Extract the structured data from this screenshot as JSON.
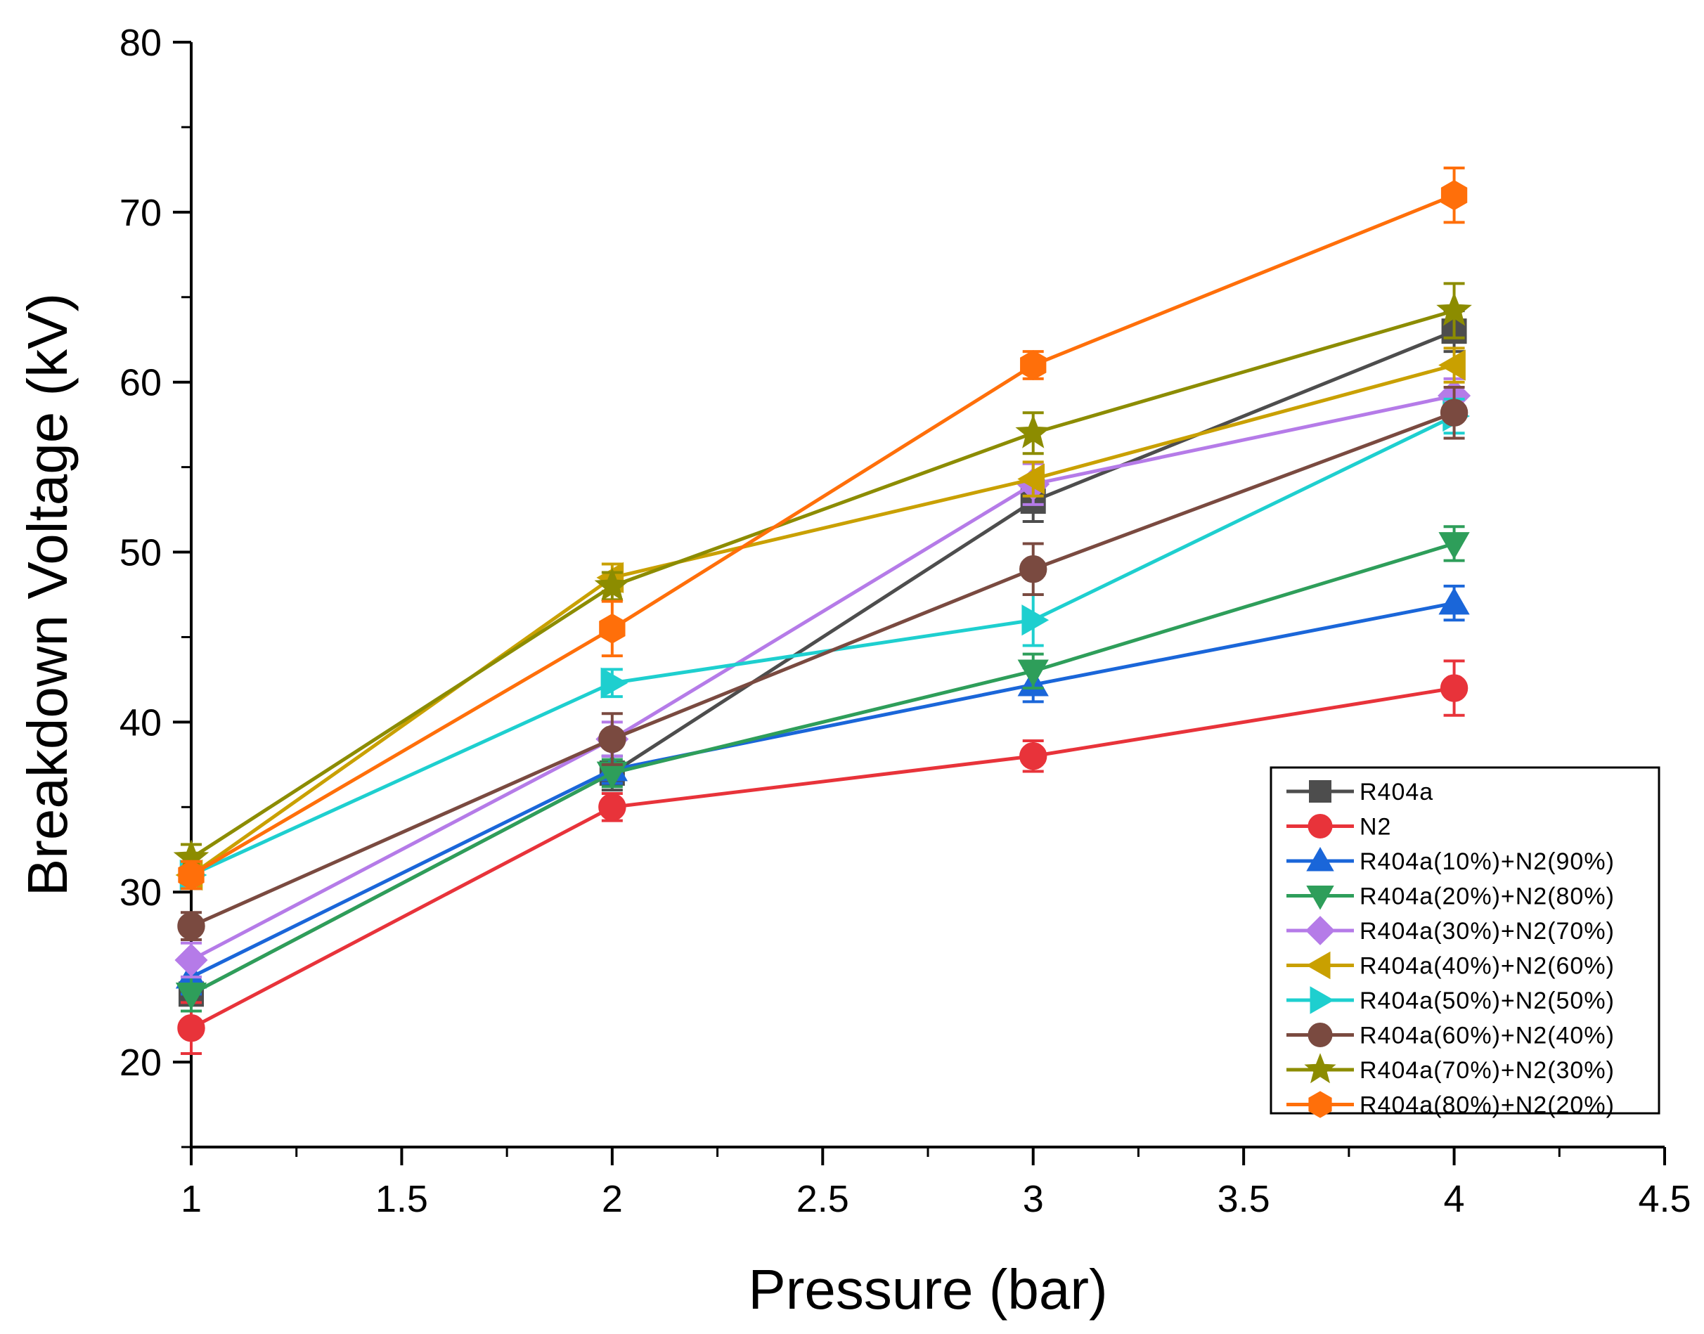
{
  "chart_data": {
    "type": "line",
    "xlabel": "Pressure (bar)",
    "ylabel": "Breakdown Voltage (kV)",
    "xlim": [
      1,
      4.5
    ],
    "ylim": [
      15,
      80
    ],
    "x_ticks": [
      "1",
      "1.5",
      "2",
      "2.5",
      "3",
      "3.5",
      "4",
      "4.5"
    ],
    "y_ticks": [
      "20",
      "30",
      "40",
      "50",
      "60",
      "70",
      "80"
    ],
    "legend_position": "bottom-right",
    "grid": false,
    "x": [
      1,
      2,
      3,
      4
    ],
    "series": [
      {
        "name": "R404a",
        "color": "#4d4d4d",
        "marker": "square",
        "values": [
          24,
          37,
          53,
          63
        ],
        "errors": [
          1.0,
          1.0,
          1.2,
          1.2
        ]
      },
      {
        "name": "N2",
        "color": "#e8333a",
        "marker": "circle",
        "values": [
          22,
          35,
          38,
          42
        ],
        "errors": [
          1.5,
          0.8,
          0.9,
          1.6
        ]
      },
      {
        "name": "R404a(10%)+N2(90%)",
        "color": "#1a66d9",
        "marker": "triangle-up",
        "values": [
          25,
          37.2,
          42.2,
          47
        ],
        "errors": [
          1.0,
          0.8,
          1.0,
          1.0
        ]
      },
      {
        "name": "R404a(20%)+N2(80%)",
        "color": "#2e9e5a",
        "marker": "triangle-down",
        "values": [
          24,
          37,
          43,
          50.5
        ],
        "errors": [
          1.0,
          0.8,
          1.0,
          1.0
        ]
      },
      {
        "name": "R404a(30%)+N2(70%)",
        "color": "#b57be8",
        "marker": "diamond",
        "values": [
          26,
          39,
          54,
          59.2
        ],
        "errors": [
          1.0,
          1.0,
          1.2,
          1.0
        ]
      },
      {
        "name": "R404a(40%)+N2(60%)",
        "color": "#c9a000",
        "marker": "triangle-left",
        "values": [
          31,
          48.5,
          54.3,
          61
        ],
        "errors": [
          0.8,
          0.8,
          1.0,
          1.0
        ]
      },
      {
        "name": "R404a(50%)+N2(50%)",
        "color": "#1ecfcf",
        "marker": "triangle-right",
        "values": [
          31,
          42.3,
          46,
          58
        ],
        "errors": [
          0.8,
          0.8,
          1.5,
          1.0
        ]
      },
      {
        "name": "R404a(60%)+N2(40%)",
        "color": "#7a4a40",
        "marker": "circle",
        "values": [
          28,
          39,
          49,
          58.2
        ],
        "errors": [
          0.8,
          1.5,
          1.5,
          1.5
        ]
      },
      {
        "name": "R404a(70%)+N2(30%)",
        "color": "#8c8c00",
        "marker": "star",
        "values": [
          32,
          48,
          57,
          64.2
        ],
        "errors": [
          0.8,
          0.8,
          1.2,
          1.6
        ]
      },
      {
        "name": "R404a(80%)+N2(20%)",
        "color": "#ff6f0a",
        "marker": "hexagon",
        "values": [
          31,
          45.5,
          61,
          71
        ],
        "errors": [
          0.8,
          1.6,
          0.8,
          1.6
        ]
      }
    ]
  }
}
